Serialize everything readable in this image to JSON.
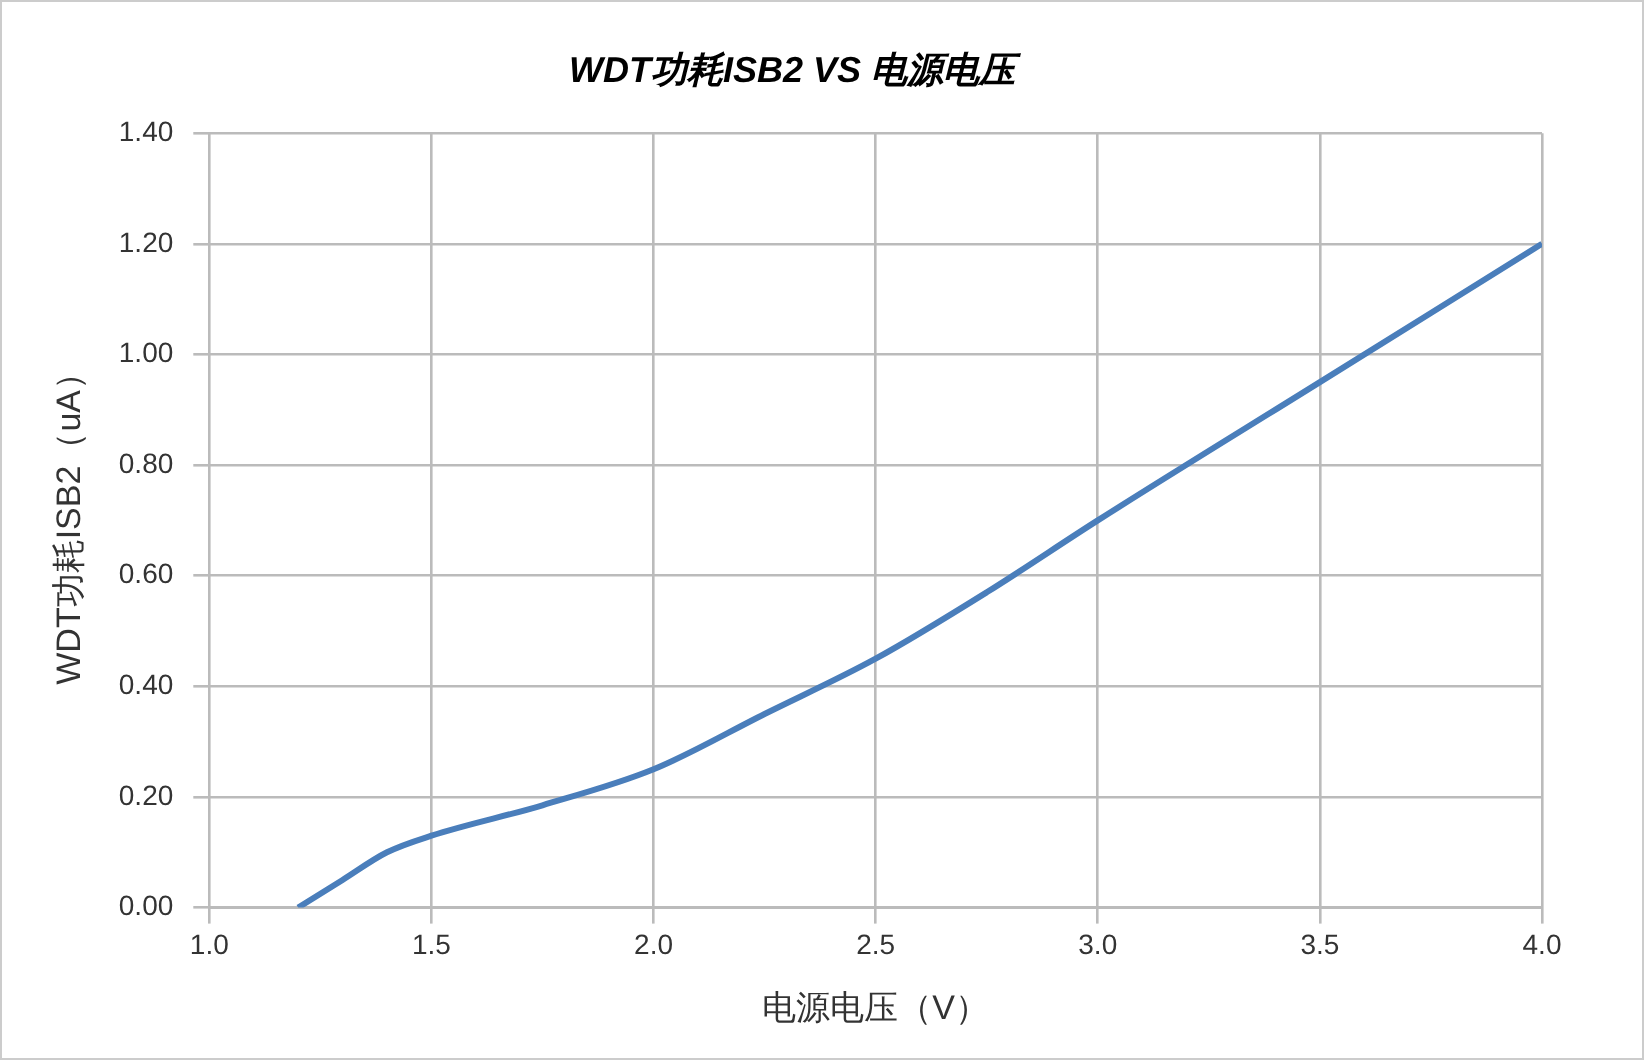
{
  "chart_data": {
    "type": "line",
    "title": "WDT功耗ISB2 VS 电源电压",
    "xlabel": "电源电压（V）",
    "ylabel": "WDT功耗ISB2（uA）",
    "x": [
      1.2,
      1.3,
      1.4,
      1.5,
      1.75,
      2.0,
      2.25,
      2.5,
      2.75,
      3.0,
      3.5,
      4.0
    ],
    "series": [
      {
        "color": "#4a7ebb",
        "values": [
          0,
          0.05,
          0.1,
          0.13,
          0.185,
          0.25,
          0.35,
          0.45,
          0.57,
          0.7,
          0.95,
          1.2
        ]
      }
    ],
    "xlim": [
      1.0,
      4.0
    ],
    "xticks": [
      {
        "value": 1,
        "label": "1.0"
      },
      1.5,
      {
        "value": 2,
        "label": "2.0"
      },
      2.5,
      {
        "value": 3,
        "label": "3.0"
      },
      3.5,
      {
        "value": 4,
        "label": "4.0"
      }
    ],
    "ylim": [
      0,
      1.4
    ],
    "yticks": [
      {
        "value": 0,
        "label": "0.00"
      },
      {
        "value": 0.2,
        "label": "0.20"
      },
      {
        "value": 0.4,
        "label": "0.40"
      },
      {
        "value": 0.6,
        "label": "0.60"
      },
      {
        "value": 0.8,
        "label": "0.80"
      },
      {
        "value": 1,
        "label": "1.00"
      },
      {
        "value": 1.2,
        "label": "1.20"
      },
      {
        "value": 1.4,
        "label": "1.40"
      }
    ],
    "grid": true,
    "legend": false,
    "marker": "none",
    "line_style": "solid"
  }
}
